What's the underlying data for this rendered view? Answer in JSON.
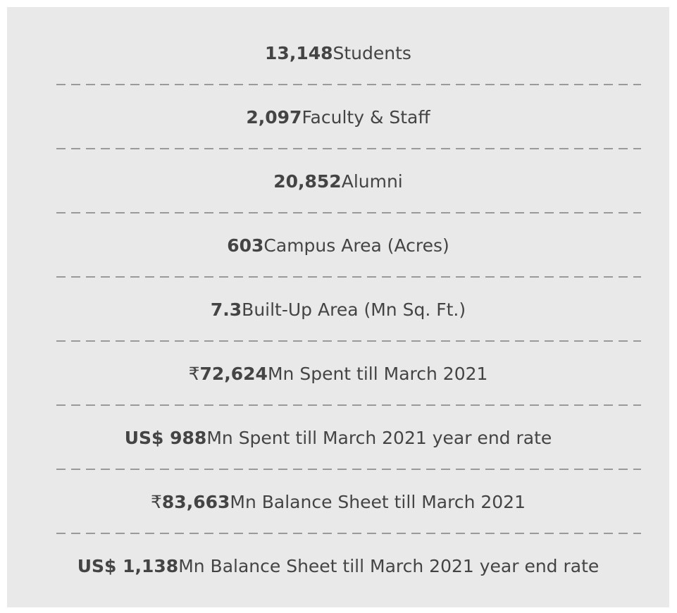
{
  "items": [
    {
      "value": "13,148",
      "label": "Students"
    },
    {
      "value": "2,097",
      "label": "Faculty & Staff"
    },
    {
      "value": "20,852",
      "label": "Alumni"
    },
    {
      "value": "603",
      "label": "Campus Area (Acres)"
    },
    {
      "value": "7.3",
      "label": "Built-Up Area (Mn Sq. Ft.)"
    },
    {
      "prefix": "₹",
      "value": "72,624",
      "label": "Mn Spent till March 2021"
    },
    {
      "value": "US$ 988",
      "label": "Mn Spent till March 2021 year end rate"
    },
    {
      "prefix": "₹",
      "value": "83,663",
      "label": "Mn Balance Sheet till March 2021"
    },
    {
      "value": "US$ 1,138",
      "label": "Mn Balance Sheet till March 2021 year end rate"
    }
  ]
}
